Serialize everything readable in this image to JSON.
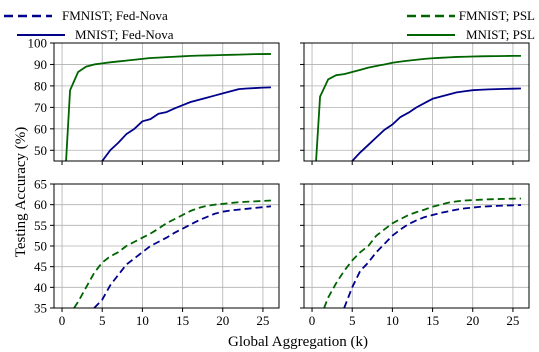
{
  "chart_data": {
    "type": "line",
    "xlabel": "Global Aggregation (k)",
    "ylabel": "Testing Accuracy (%)",
    "x_ticks": [
      0,
      5,
      10,
      15,
      20,
      25
    ],
    "xlim": [
      -1,
      27
    ],
    "grid": true,
    "legend": [
      {
        "label": "FMNIST; Fed-Nova",
        "color": "#00008B",
        "style": "dashed",
        "position": "top-left"
      },
      {
        "label": "MNIST; Fed-Nova",
        "color": "#00008B",
        "style": "solid",
        "position": "top-left"
      },
      {
        "label": "FMNIST; PSL",
        "color": "#006400",
        "style": "dashed",
        "position": "top-right"
      },
      {
        "label": "MNIST; PSL",
        "color": "#006400",
        "style": "solid",
        "position": "top-right"
      }
    ],
    "panels": [
      {
        "ylim": [
          45,
          100
        ],
        "y_ticks": [
          50,
          60,
          70,
          80,
          90,
          100
        ],
        "series": [
          {
            "name": "MNIST; Fed-Nova",
            "color": "#00008B",
            "style": "solid",
            "x": [
              5,
              6,
              7,
              8,
              9,
              10,
              11,
              12,
              13,
              14,
              15,
              16,
              17,
              18,
              19,
              20,
              21,
              22,
              23,
              24,
              25,
              26
            ],
            "y": [
              45,
              50,
              53.5,
              57.5,
              60,
              63.5,
              64.5,
              67,
              67.8,
              69.5,
              71,
              72.5,
              73.5,
              74.5,
              75.5,
              76.5,
              77.5,
              78.5,
              78.8,
              79,
              79.2,
              79.3
            ]
          },
          {
            "name": "MNIST; PSL",
            "color": "#006400",
            "style": "solid",
            "x": [
              0.5,
              1,
              2,
              3,
              4,
              5,
              6,
              7,
              8,
              9,
              10,
              11,
              12,
              13,
              14,
              15,
              16,
              17,
              18,
              19,
              20,
              21,
              22,
              23,
              24,
              25,
              26
            ],
            "y": [
              45,
              78,
              86.5,
              89,
              90,
              90.5,
              91,
              91.4,
              91.8,
              92.2,
              92.6,
              93,
              93.2,
              93.4,
              93.6,
              93.8,
              94,
              94.1,
              94.2,
              94.3,
              94.4,
              94.5,
              94.6,
              94.7,
              94.8,
              94.85,
              94.9
            ]
          }
        ]
      },
      {
        "ylim": [
          45,
          100
        ],
        "y_ticks": [
          50,
          60,
          70,
          80,
          90,
          100
        ],
        "series": [
          {
            "name": "MNIST; PSL",
            "color": "#006400",
            "style": "solid",
            "x": [
              0.5,
              1,
              2,
              3,
              4,
              5,
              6,
              7,
              8,
              9,
              10,
              11,
              12,
              13,
              14,
              15,
              16,
              17,
              18,
              19,
              20,
              21,
              22,
              23,
              24,
              25,
              26
            ],
            "y": [
              45,
              75,
              83,
              85,
              85.5,
              86.5,
              87.5,
              88.5,
              89.3,
              90,
              90.8,
              91.3,
              91.8,
              92.2,
              92.6,
              92.9,
              93.1,
              93.3,
              93.5,
              93.6,
              93.7,
              93.8,
              93.85,
              93.9,
              93.95,
              94,
              94
            ]
          },
          {
            "name": "MNIST; Fed-Nova",
            "color": "#00008B",
            "style": "solid",
            "x": [
              5,
              6,
              7,
              8,
              9,
              10,
              11,
              12,
              13,
              14,
              15,
              16,
              17,
              18,
              19,
              20,
              21,
              22,
              23,
              24,
              25,
              26
            ],
            "y": [
              45,
              49,
              52.5,
              56,
              59.5,
              62,
              65.5,
              67.5,
              70,
              72,
              74,
              75,
              76,
              77,
              77.5,
              78,
              78.2,
              78.4,
              78.5,
              78.6,
              78.7,
              78.8
            ]
          }
        ]
      },
      {
        "ylim": [
          35,
          65
        ],
        "y_ticks": [
          35,
          40,
          45,
          50,
          55,
          60,
          65
        ],
        "series": [
          {
            "name": "FMNIST; PSL",
            "color": "#006400",
            "style": "dashed",
            "x": [
              1.5,
              2,
              3,
              4,
              5,
              6,
              7,
              8,
              9,
              10,
              11,
              12,
              13,
              14,
              15,
              16,
              17,
              18,
              19,
              20,
              21,
              22,
              23,
              24,
              25,
              26
            ],
            "y": [
              35,
              36.5,
              40,
              43.5,
              46,
              47.5,
              48.5,
              50,
              51,
              52,
              53,
              54.2,
              55.5,
              56.5,
              57.5,
              58.5,
              59.2,
              59.7,
              60,
              60.2,
              60.4,
              60.6,
              60.7,
              60.8,
              60.9,
              61
            ]
          },
          {
            "name": "FMNIST; Fed-Nova",
            "color": "#00008B",
            "style": "dashed",
            "x": [
              4,
              5,
              6,
              7,
              8,
              9,
              10,
              11,
              12,
              13,
              14,
              15,
              16,
              17,
              18,
              19,
              20,
              21,
              22,
              23,
              24,
              25,
              26
            ],
            "y": [
              35,
              37,
              40.5,
              43,
              45.5,
              47,
              48.5,
              50,
              51,
              52,
              53.2,
              54.2,
              55.2,
              56.2,
              57,
              57.8,
              58.3,
              58.6,
              58.8,
              59,
              59.2,
              59.4,
              59.6
            ]
          }
        ]
      },
      {
        "ylim": [
          35,
          65
        ],
        "y_ticks": [
          35,
          40,
          45,
          50,
          55,
          60,
          65
        ],
        "series": [
          {
            "name": "FMNIST; PSL",
            "color": "#006400",
            "style": "dashed",
            "x": [
              1.5,
              2,
              3,
              4,
              5,
              6,
              7,
              8,
              9,
              10,
              11,
              12,
              13,
              14,
              15,
              16,
              17,
              18,
              19,
              20,
              21,
              22,
              23,
              24,
              25,
              26
            ],
            "y": [
              35,
              37.5,
              41,
              44,
              46.5,
              48.5,
              50,
              52.5,
              54,
              55.5,
              56.5,
              57.5,
              58.2,
              58.8,
              59.5,
              60,
              60.5,
              60.8,
              61,
              61.1,
              61.2,
              61.3,
              61.35,
              61.4,
              61.45,
              61.5
            ]
          },
          {
            "name": "FMNIST; Fed-Nova",
            "color": "#00008B",
            "style": "dashed",
            "x": [
              4,
              5,
              6,
              7,
              8,
              9,
              10,
              11,
              12,
              13,
              14,
              15,
              16,
              17,
              18,
              19,
              20,
              21,
              22,
              23,
              24,
              25,
              26
            ],
            "y": [
              35,
              40,
              44,
              46,
              48.5,
              50.5,
              52.5,
              54,
              55.3,
              56.2,
              57,
              57.5,
              58,
              58.4,
              58.8,
              59.1,
              59.3,
              59.5,
              59.6,
              59.7,
              59.8,
              59.85,
              59.9
            ]
          }
        ]
      }
    ]
  }
}
